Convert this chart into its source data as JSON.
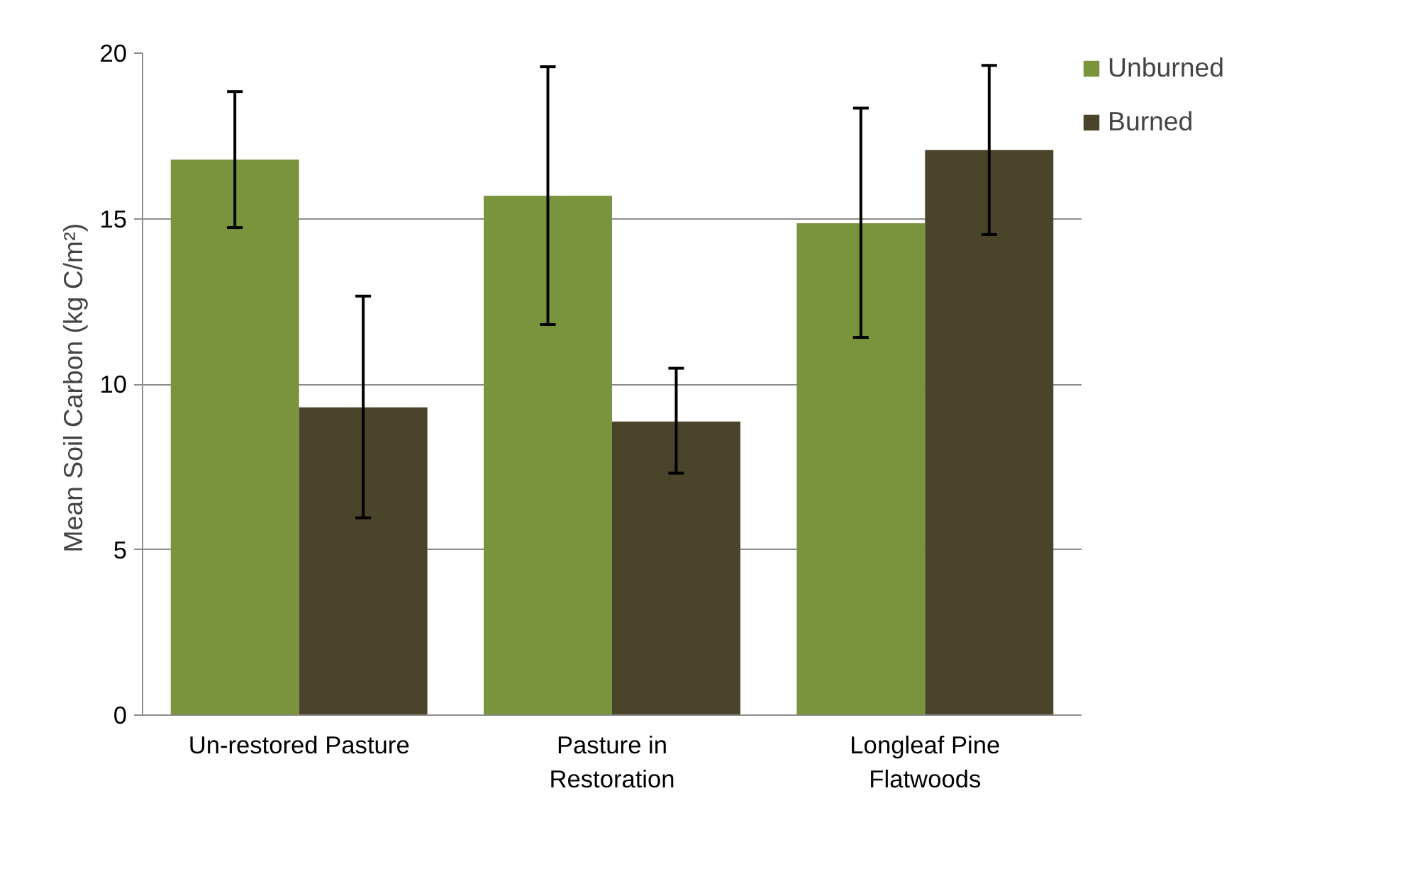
{
  "chart_data": {
    "type": "bar",
    "ylabel": "Mean  Soil Carbon (kg C/m²)",
    "categories": [
      "Un-restored Pasture",
      "Pasture in\nRestoration",
      "Longleaf Pine\nFlatwoods"
    ],
    "series": [
      {
        "name": "Unburned",
        "color": "#79943c",
        "values": [
          16.78,
          15.69,
          14.86
        ],
        "errors": [
          [
            14.73,
            18.84
          ],
          [
            11.8,
            19.59
          ],
          [
            11.41,
            18.34
          ]
        ]
      },
      {
        "name": "Burned",
        "color": "#4a452a",
        "values": [
          9.3,
          8.87,
          17.07
        ],
        "errors": [
          [
            5.96,
            12.66
          ],
          [
            7.31,
            10.48
          ],
          [
            14.52,
            19.63
          ]
        ]
      }
    ],
    "ylim": [
      0,
      20
    ],
    "yticks": [
      0,
      5,
      10,
      15,
      20
    ],
    "grid": "y",
    "legend": "right"
  }
}
